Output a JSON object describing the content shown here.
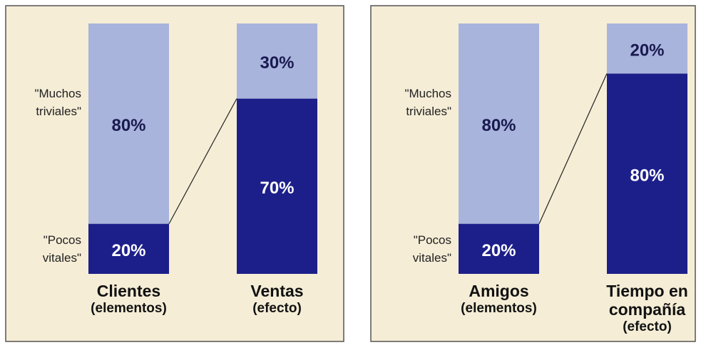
{
  "chart_data": [
    {
      "type": "bar",
      "stacked": true,
      "categories": [
        "Clientes",
        "Ventas"
      ],
      "category_notes": [
        "(elementos)",
        "(efecto)"
      ],
      "series": [
        {
          "name": "\"Pocos vitales\"",
          "color": "#1c1f8a",
          "label_color": "#ffffff",
          "values": [
            20,
            70
          ],
          "value_labels": [
            "20%",
            "70%"
          ]
        },
        {
          "name": "\"Muchos triviales\"",
          "color": "#a9b4dc",
          "label_color": "#1a1a50",
          "values": [
            80,
            30
          ],
          "value_labels": [
            "80%",
            "30%"
          ]
        }
      ]
    },
    {
      "type": "bar",
      "stacked": true,
      "categories": [
        "Amigos",
        "Tiempo en compañía"
      ],
      "category_notes": [
        "(elementos)",
        "(efecto)"
      ],
      "series": [
        {
          "name": "\"Pocos vitales\"",
          "color": "#1c1f8a",
          "label_color": "#ffffff",
          "values": [
            20,
            80
          ],
          "value_labels": [
            "20%",
            "80%"
          ]
        },
        {
          "name": "\"Muchos triviales\"",
          "color": "#a9b4dc",
          "label_color": "#1a1a50",
          "values": [
            80,
            20
          ],
          "value_labels": [
            "80%",
            "20%"
          ]
        }
      ]
    }
  ]
}
